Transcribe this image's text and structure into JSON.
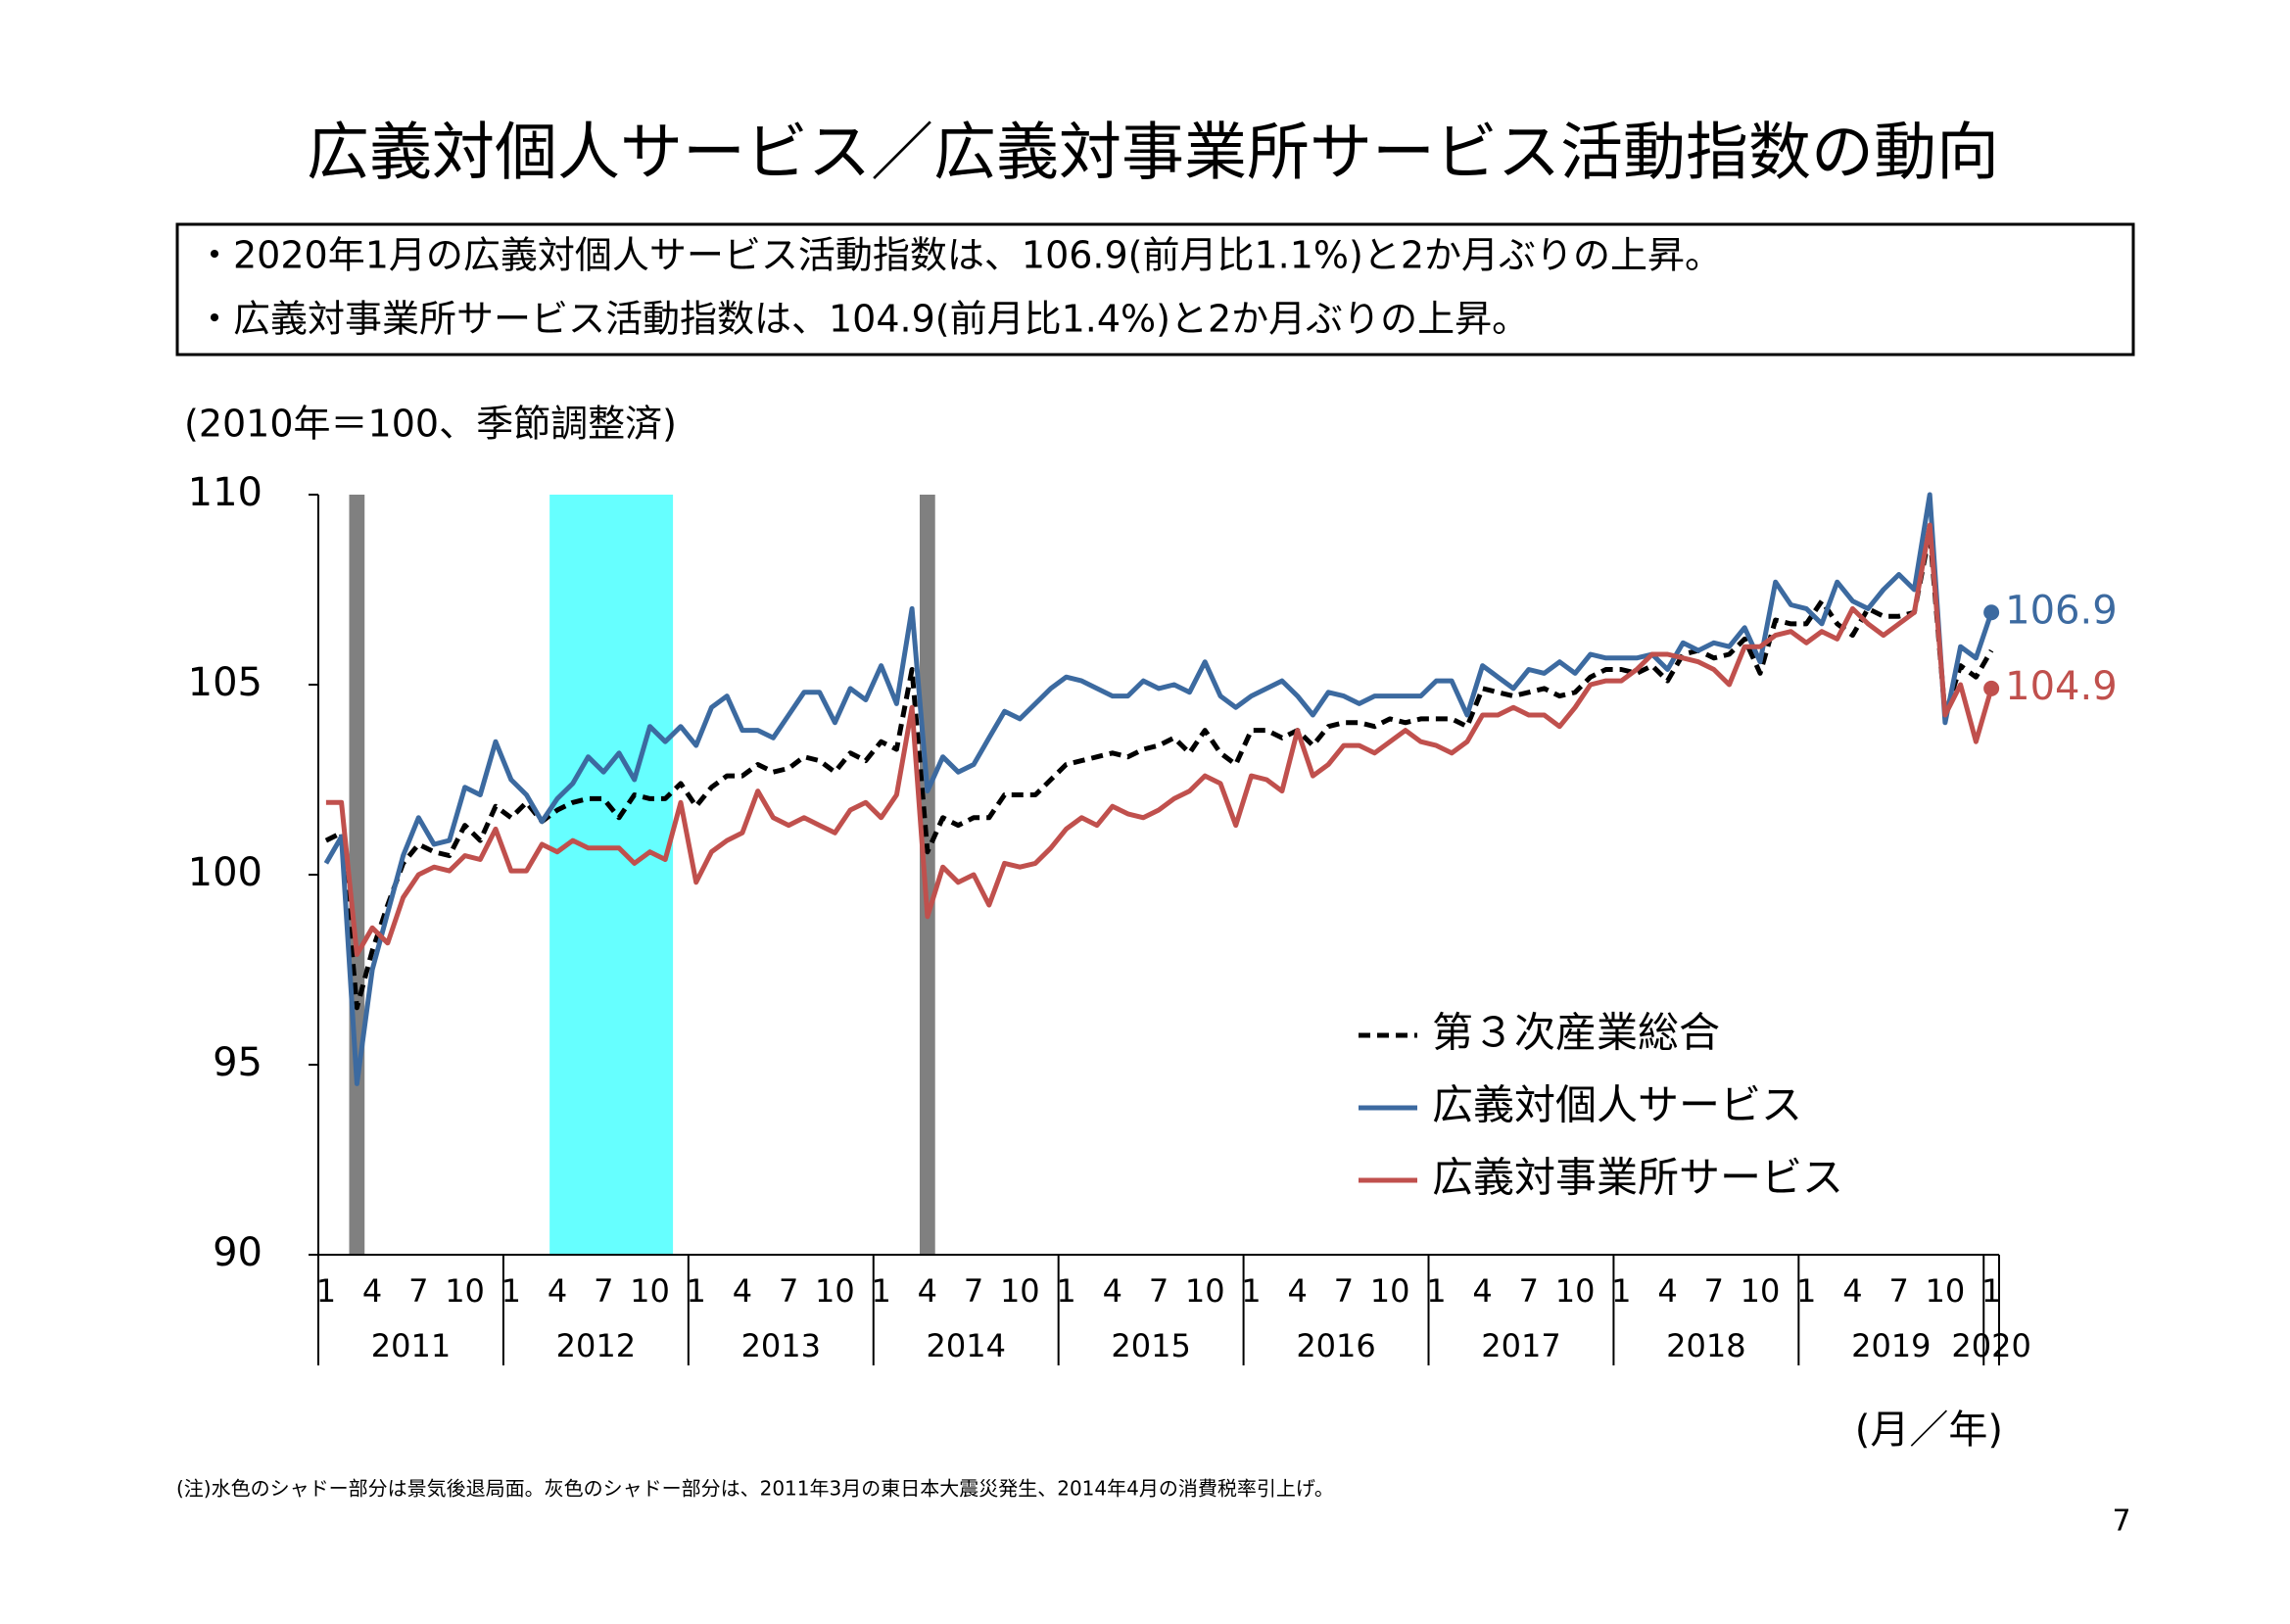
{
  "title": "広義対個人サービス／広義対事業所サービス活動指数の動向",
  "bullets": [
    "・2020年1月の広義対個人サービス活動指数は、106.9(前月比1.1%)と2か月ぶりの上昇。",
    "・広義対事業所サービス活動指数は、104.9(前月比1.4%)と2か月ぶりの上昇。"
  ],
  "footnote": "(注)水色のシャドー部分は景気後退局面。灰色のシャドー部分は、2011年3月の東日本大震災発生、2014年4月の消費税率引上げ。",
  "page_number": "7",
  "chart_data": {
    "type": "line",
    "y_unit_note": "(2010年＝100、季節調整済)",
    "x_unit_note": "(月／年)",
    "categories": [
      "1",
      null,
      null,
      "4",
      null,
      null,
      "7",
      null,
      null,
      "10",
      null,
      null,
      "1",
      null,
      null,
      "4",
      null,
      null,
      "7",
      null,
      null,
      "10",
      null,
      null,
      "1",
      null,
      null,
      "4",
      null,
      null,
      "7",
      null,
      null,
      "10",
      null,
      null,
      "1",
      null,
      null,
      "4",
      null,
      null,
      "7",
      null,
      null,
      "10",
      null,
      null,
      "1",
      null,
      null,
      "4",
      null,
      null,
      "7",
      null,
      null,
      "10",
      null,
      null,
      "1",
      null,
      null,
      "4",
      null,
      null,
      "7",
      null,
      null,
      "10",
      null,
      null,
      "1",
      null,
      null,
      "4",
      null,
      null,
      "7",
      null,
      null,
      "10",
      null,
      null,
      "1",
      null,
      null,
      "4",
      null,
      null,
      "7",
      null,
      null,
      "10",
      null,
      null,
      "1",
      null,
      null,
      "4",
      null,
      null,
      "7",
      null,
      null,
      "10",
      null,
      null,
      "1"
    ],
    "years": [
      "2011",
      "2012",
      "2013",
      "2014",
      "2015",
      "2016",
      "2017",
      "2018",
      "2019",
      "2020"
    ],
    "ylim": [
      90,
      110
    ],
    "yticks": [
      90,
      95,
      100,
      105,
      110
    ],
    "shades": [
      {
        "from": 2,
        "to": 2,
        "color": "#808080"
      },
      {
        "from": 15,
        "to": 22,
        "color": "#66ffff"
      },
      {
        "from": 39,
        "to": 39,
        "color": "#808080"
      }
    ],
    "series": [
      {
        "name": "第３次産業総合",
        "color": "#000000",
        "dashed": true,
        "values": [
          100.9,
          101.1,
          96.5,
          98.0,
          99.2,
          100.3,
          100.8,
          100.6,
          100.5,
          101.3,
          100.9,
          101.8,
          101.5,
          101.9,
          101.4,
          101.7,
          101.9,
          102.0,
          102.0,
          101.5,
          102.1,
          102.0,
          102.0,
          102.4,
          101.8,
          102.3,
          102.6,
          102.6,
          102.9,
          102.7,
          102.8,
          103.1,
          103.0,
          102.7,
          103.2,
          103.0,
          103.5,
          103.3,
          105.4,
          100.6,
          101.5,
          101.3,
          101.5,
          101.5,
          102.1,
          102.1,
          102.1,
          102.5,
          102.9,
          103.0,
          103.1,
          103.2,
          103.1,
          103.3,
          103.4,
          103.6,
          103.2,
          103.8,
          103.2,
          102.9,
          103.8,
          103.8,
          103.6,
          103.8,
          103.4,
          103.9,
          104.0,
          104.0,
          103.9,
          104.1,
          104.0,
          104.1,
          104.1,
          104.1,
          103.9,
          104.9,
          104.8,
          104.7,
          104.8,
          104.9,
          104.7,
          104.8,
          105.2,
          105.4,
          105.4,
          105.3,
          105.5,
          105.1,
          105.8,
          105.9,
          105.7,
          105.8,
          106.2,
          105.3,
          106.7,
          106.6,
          106.6,
          107.2,
          106.6,
          106.3,
          107.0,
          106.8,
          106.8,
          106.9,
          109.0,
          104.2,
          105.5,
          105.2,
          105.9
        ]
      },
      {
        "name": "広義対個人サービス",
        "color": "#3c6aa0",
        "end_label": "106.9",
        "values": [
          100.3,
          101.0,
          94.5,
          97.5,
          99.0,
          100.5,
          101.5,
          100.8,
          100.9,
          102.3,
          102.1,
          103.5,
          102.5,
          102.1,
          101.4,
          102.0,
          102.4,
          103.1,
          102.7,
          103.2,
          102.5,
          103.9,
          103.5,
          103.9,
          103.4,
          104.4,
          104.7,
          103.8,
          103.8,
          103.6,
          104.2,
          104.8,
          104.8,
          104.0,
          104.9,
          104.6,
          105.5,
          104.5,
          107.0,
          102.2,
          103.1,
          102.7,
          102.9,
          103.6,
          104.3,
          104.1,
          104.5,
          104.9,
          105.2,
          105.1,
          104.9,
          104.7,
          104.7,
          105.1,
          104.9,
          105.0,
          104.8,
          105.6,
          104.7,
          104.4,
          104.7,
          104.9,
          105.1,
          104.7,
          104.2,
          104.8,
          104.7,
          104.5,
          104.7,
          104.7,
          104.7,
          104.7,
          105.1,
          105.1,
          104.2,
          105.5,
          105.2,
          104.9,
          105.4,
          105.3,
          105.6,
          105.3,
          105.8,
          105.7,
          105.7,
          105.7,
          105.8,
          105.4,
          106.1,
          105.9,
          106.1,
          106.0,
          106.5,
          105.6,
          107.7,
          107.1,
          107.0,
          106.6,
          107.7,
          107.2,
          107.0,
          107.5,
          107.9,
          107.5,
          110.0,
          104.0,
          106.0,
          105.7,
          106.9
        ]
      },
      {
        "name": "広義対事業所サービス",
        "color": "#c0504d",
        "end_label": "104.9",
        "values": [
          101.9,
          101.9,
          97.9,
          98.6,
          98.2,
          99.4,
          100.0,
          100.2,
          100.1,
          100.5,
          100.4,
          101.2,
          100.1,
          100.1,
          100.8,
          100.6,
          100.9,
          100.7,
          100.7,
          100.7,
          100.3,
          100.6,
          100.4,
          101.9,
          99.8,
          100.6,
          100.9,
          101.1,
          102.2,
          101.5,
          101.3,
          101.5,
          101.3,
          101.1,
          101.7,
          101.9,
          101.5,
          102.1,
          104.4,
          98.9,
          100.2,
          99.8,
          100.0,
          99.2,
          100.3,
          100.2,
          100.3,
          100.7,
          101.2,
          101.5,
          101.3,
          101.8,
          101.6,
          101.5,
          101.7,
          102.0,
          102.2,
          102.6,
          102.4,
          101.3,
          102.6,
          102.5,
          102.2,
          103.8,
          102.6,
          102.9,
          103.4,
          103.4,
          103.2,
          103.5,
          103.8,
          103.5,
          103.4,
          103.2,
          103.5,
          104.2,
          104.2,
          104.4,
          104.2,
          104.2,
          103.9,
          104.4,
          105.0,
          105.1,
          105.1,
          105.4,
          105.8,
          105.8,
          105.7,
          105.6,
          105.4,
          105.0,
          106.0,
          106.0,
          106.3,
          106.4,
          106.1,
          106.4,
          106.2,
          107.0,
          106.6,
          106.3,
          106.6,
          106.9,
          109.2,
          104.2,
          105.0,
          103.5,
          104.9
        ]
      }
    ]
  }
}
